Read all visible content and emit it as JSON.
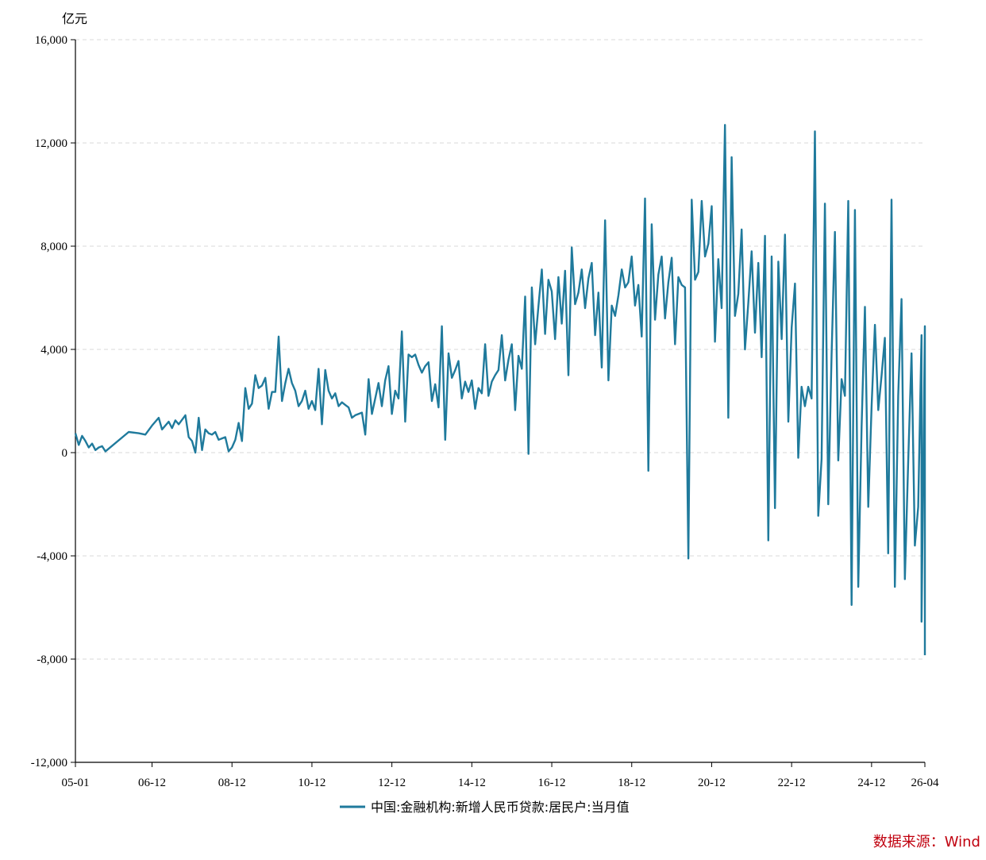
{
  "chart_data": {
    "type": "line",
    "unit_label": "亿元",
    "source_label": "数据来源：Wind",
    "colors": {
      "series": "#1f7a9c",
      "axis": "#000000",
      "grid": "#d9d9d9",
      "source": "#c0000e"
    },
    "grid": true,
    "legend_position": "bottom-center",
    "ylim": [
      -12000,
      16000
    ],
    "y_ticks": [
      16000,
      12000,
      8000,
      4000,
      0,
      -4000,
      -8000,
      -12000
    ],
    "y_tick_labels": [
      "16,000",
      "12,000",
      "8,000",
      "4,000",
      "0",
      "-4,000",
      "-8,000",
      "-12,000"
    ],
    "x_range": [
      "2005-01",
      "2026-04"
    ],
    "x_ticks": [
      "2005-01",
      "2006-12",
      "2008-12",
      "2010-12",
      "2012-12",
      "2014-12",
      "2016-12",
      "2018-12",
      "2020-12",
      "2022-12",
      "2024-12",
      "2026-04"
    ],
    "x_tick_labels": [
      "05-01",
      "06-12",
      "08-12",
      "10-12",
      "12-12",
      "14-12",
      "16-12",
      "18-12",
      "20-12",
      "22-12",
      "24-12",
      "26-04"
    ],
    "series": [
      {
        "name": "中国:金融机构:新增人民币贷款:居民户:当月值",
        "points": [
          [
            "2005-01",
            750
          ],
          [
            "2005-02",
            300
          ],
          [
            "2005-03",
            650
          ],
          [
            "2005-04",
            450
          ],
          [
            "2005-05",
            200
          ],
          [
            "2005-06",
            350
          ],
          [
            "2005-07",
            100
          ],
          [
            "2005-08",
            200
          ],
          [
            "2005-09",
            250
          ],
          [
            "2005-10",
            50
          ],
          [
            "2006-05",
            800
          ],
          [
            "2006-08",
            750
          ],
          [
            "2006-10",
            700
          ],
          [
            "2006-12",
            1050
          ],
          [
            "2007-02",
            1350
          ],
          [
            "2007-03",
            900
          ],
          [
            "2007-05",
            1200
          ],
          [
            "2007-06",
            950
          ],
          [
            "2007-07",
            1250
          ],
          [
            "2007-08",
            1100
          ],
          [
            "2007-10",
            1450
          ],
          [
            "2007-11",
            600
          ],
          [
            "2007-12",
            450
          ],
          [
            "2008-01",
            0
          ],
          [
            "2008-02",
            1350
          ],
          [
            "2008-03",
            100
          ],
          [
            "2008-04",
            900
          ],
          [
            "2008-05",
            750
          ],
          [
            "2008-06",
            700
          ],
          [
            "2008-07",
            800
          ],
          [
            "2008-08",
            500
          ],
          [
            "2008-09",
            550
          ],
          [
            "2008-10",
            600
          ],
          [
            "2008-11",
            50
          ],
          [
            "2008-12",
            200
          ],
          [
            "2009-01",
            500
          ],
          [
            "2009-02",
            1150
          ],
          [
            "2009-03",
            450
          ],
          [
            "2009-04",
            2500
          ],
          [
            "2009-05",
            1700
          ],
          [
            "2009-06",
            1900
          ],
          [
            "2009-07",
            3000
          ],
          [
            "2009-08",
            2500
          ],
          [
            "2009-09",
            2600
          ],
          [
            "2009-10",
            2900
          ],
          [
            "2009-11",
            1700
          ],
          [
            "2009-12",
            2350
          ],
          [
            "2010-01",
            2350
          ],
          [
            "2010-02",
            4500
          ],
          [
            "2010-03",
            2000
          ],
          [
            "2010-04",
            2700
          ],
          [
            "2010-05",
            3250
          ],
          [
            "2010-06",
            2700
          ],
          [
            "2010-07",
            2400
          ],
          [
            "2010-08",
            1800
          ],
          [
            "2010-09",
            2000
          ],
          [
            "2010-10",
            2400
          ],
          [
            "2010-11",
            1700
          ],
          [
            "2010-12",
            2000
          ],
          [
            "2011-01",
            1650
          ],
          [
            "2011-02",
            3250
          ],
          [
            "2011-03",
            1100
          ],
          [
            "2011-04",
            3200
          ],
          [
            "2011-05",
            2400
          ],
          [
            "2011-06",
            2100
          ],
          [
            "2011-07",
            2300
          ],
          [
            "2011-08",
            1800
          ],
          [
            "2011-09",
            1950
          ],
          [
            "2011-10",
            1850
          ],
          [
            "2011-11",
            1750
          ],
          [
            "2011-12",
            1350
          ],
          [
            "2012-01",
            1450
          ],
          [
            "2012-03",
            1550
          ],
          [
            "2012-04",
            700
          ],
          [
            "2012-05",
            2850
          ],
          [
            "2012-06",
            1500
          ],
          [
            "2012-08",
            2700
          ],
          [
            "2012-09",
            1800
          ],
          [
            "2012-10",
            2800
          ],
          [
            "2012-11",
            3350
          ],
          [
            "2012-12",
            1500
          ],
          [
            "2013-01",
            2400
          ],
          [
            "2013-02",
            2100
          ],
          [
            "2013-03",
            4700
          ],
          [
            "2013-04",
            1200
          ],
          [
            "2013-05",
            3800
          ],
          [
            "2013-06",
            3700
          ],
          [
            "2013-07",
            3800
          ],
          [
            "2013-08",
            3400
          ],
          [
            "2013-09",
            3100
          ],
          [
            "2013-10",
            3350
          ],
          [
            "2013-11",
            3500
          ],
          [
            "2013-12",
            2000
          ],
          [
            "2014-01",
            2650
          ],
          [
            "2014-02",
            1750
          ],
          [
            "2014-03",
            4900
          ],
          [
            "2014-04",
            500
          ],
          [
            "2014-05",
            3850
          ],
          [
            "2014-06",
            2900
          ],
          [
            "2014-07",
            3200
          ],
          [
            "2014-08",
            3550
          ],
          [
            "2014-09",
            2100
          ],
          [
            "2014-10",
            2750
          ],
          [
            "2014-11",
            2350
          ],
          [
            "2014-12",
            2800
          ],
          [
            "2015-01",
            1700
          ],
          [
            "2015-02",
            2500
          ],
          [
            "2015-03",
            2300
          ],
          [
            "2015-04",
            4200
          ],
          [
            "2015-05",
            2200
          ],
          [
            "2015-06",
            2750
          ],
          [
            "2015-07",
            3000
          ],
          [
            "2015-08",
            3200
          ],
          [
            "2015-09",
            4550
          ],
          [
            "2015-10",
            2800
          ],
          [
            "2015-11",
            3600
          ],
          [
            "2015-12",
            4200
          ],
          [
            "2016-01",
            1650
          ],
          [
            "2016-02",
            3750
          ],
          [
            "2016-03",
            3250
          ],
          [
            "2016-04",
            6050
          ],
          [
            "2016-05",
            -50
          ],
          [
            "2016-06",
            6400
          ],
          [
            "2016-07",
            4200
          ],
          [
            "2016-08",
            5700
          ],
          [
            "2016-09",
            7100
          ],
          [
            "2016-10",
            4600
          ],
          [
            "2016-11",
            6700
          ],
          [
            "2016-12",
            6250
          ],
          [
            "2017-01",
            4400
          ],
          [
            "2017-02",
            6800
          ],
          [
            "2017-03",
            5000
          ],
          [
            "2017-04",
            7050
          ],
          [
            "2017-05",
            3000
          ],
          [
            "2017-06",
            7950
          ],
          [
            "2017-07",
            5750
          ],
          [
            "2017-08",
            6200
          ],
          [
            "2017-09",
            7100
          ],
          [
            "2017-10",
            5600
          ],
          [
            "2017-11",
            6750
          ],
          [
            "2017-12",
            7350
          ],
          [
            "2018-01",
            4550
          ],
          [
            "2018-02",
            6200
          ],
          [
            "2018-03",
            3300
          ],
          [
            "2018-04",
            9000
          ],
          [
            "2018-05",
            2800
          ],
          [
            "2018-06",
            5700
          ],
          [
            "2018-07",
            5300
          ],
          [
            "2018-08",
            6100
          ],
          [
            "2018-09",
            7100
          ],
          [
            "2018-10",
            6400
          ],
          [
            "2018-11",
            6600
          ],
          [
            "2018-12",
            7600
          ],
          [
            "2019-01",
            5700
          ],
          [
            "2019-02",
            6500
          ],
          [
            "2019-03",
            4500
          ],
          [
            "2019-04",
            9850
          ],
          [
            "2019-05",
            -700
          ],
          [
            "2019-06",
            8850
          ],
          [
            "2019-07",
            5150
          ],
          [
            "2019-08",
            6900
          ],
          [
            "2019-09",
            7600
          ],
          [
            "2019-10",
            5200
          ],
          [
            "2019-11",
            6600
          ],
          [
            "2019-12",
            7550
          ],
          [
            "2020-01",
            4200
          ],
          [
            "2020-02",
            6800
          ],
          [
            "2020-03",
            6500
          ],
          [
            "2020-04",
            6400
          ],
          [
            "2020-05",
            -4100
          ],
          [
            "2020-06",
            9800
          ],
          [
            "2020-07",
            6700
          ],
          [
            "2020-08",
            7000
          ],
          [
            "2020-09",
            9750
          ],
          [
            "2020-10",
            7600
          ],
          [
            "2020-11",
            8100
          ],
          [
            "2020-12",
            9550
          ],
          [
            "2021-01",
            4300
          ],
          [
            "2021-02",
            7500
          ],
          [
            "2021-03",
            5600
          ],
          [
            "2021-04",
            12700
          ],
          [
            "2021-05",
            1350
          ],
          [
            "2021-06",
            11450
          ],
          [
            "2021-07",
            5300
          ],
          [
            "2021-08",
            6150
          ],
          [
            "2021-09",
            8650
          ],
          [
            "2021-10",
            4000
          ],
          [
            "2021-11",
            5800
          ],
          [
            "2021-12",
            7800
          ],
          [
            "2022-01",
            4650
          ],
          [
            "2022-02",
            7350
          ],
          [
            "2022-03",
            3700
          ],
          [
            "2022-04",
            8400
          ],
          [
            "2022-05",
            -3400
          ],
          [
            "2022-06",
            7600
          ],
          [
            "2022-07",
            -2150
          ],
          [
            "2022-08",
            7400
          ],
          [
            "2022-09",
            4400
          ],
          [
            "2022-10",
            8450
          ],
          [
            "2022-11",
            1200
          ],
          [
            "2022-12",
            4850
          ],
          [
            "2023-01",
            6550
          ],
          [
            "2023-02",
            -200
          ],
          [
            "2023-03",
            2550
          ],
          [
            "2023-04",
            1800
          ],
          [
            "2023-05",
            2550
          ],
          [
            "2023-06",
            2100
          ],
          [
            "2023-07",
            12450
          ],
          [
            "2023-08",
            -2450
          ],
          [
            "2023-09",
            -250
          ],
          [
            "2023-10",
            9650
          ],
          [
            "2023-11",
            -2000
          ],
          [
            "2023-12",
            3800
          ],
          [
            "2024-01",
            8550
          ],
          [
            "2024-02",
            -300
          ],
          [
            "2024-03",
            2850
          ],
          [
            "2024-04",
            2200
          ],
          [
            "2024-05",
            9750
          ],
          [
            "2024-06",
            -5900
          ],
          [
            "2024-07",
            9400
          ],
          [
            "2024-08",
            -5200
          ],
          [
            "2024-09",
            1000
          ],
          [
            "2024-10",
            5650
          ],
          [
            "2024-11",
            -2100
          ],
          [
            "2024-12",
            1800
          ],
          [
            "2025-01",
            4950
          ],
          [
            "2025-02",
            1650
          ],
          [
            "2025-03",
            3000
          ],
          [
            "2025-04",
            4450
          ],
          [
            "2025-05",
            -3900
          ],
          [
            "2025-06",
            9800
          ],
          [
            "2025-07",
            -5200
          ],
          [
            "2025-08",
            2200
          ],
          [
            "2025-09",
            5950
          ],
          [
            "2025-10",
            -4900
          ],
          [
            "2025-11",
            -350
          ],
          [
            "2025-12",
            3850
          ],
          [
            "2026-01",
            -3600
          ],
          [
            "2026-02",
            -2100
          ],
          [
            "2026-03",
            4550
          ],
          [
            "2026-03",
            -6550
          ],
          [
            "2026-04",
            4900
          ],
          [
            "2026-04",
            -7850
          ]
        ]
      }
    ]
  }
}
